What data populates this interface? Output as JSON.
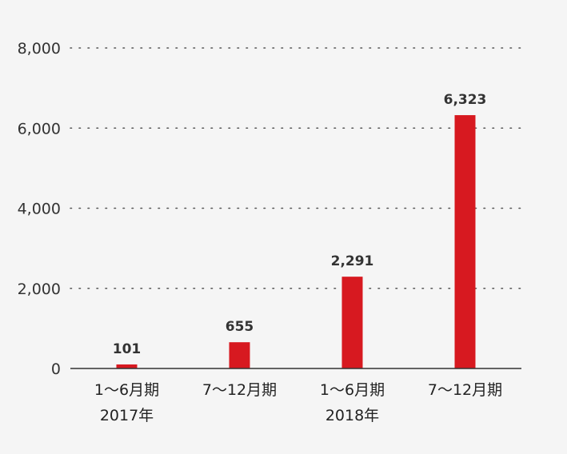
{
  "chart_data": {
    "type": "bar",
    "categories": [
      "1～6月期",
      "7～12月期",
      "1～6月期",
      "7～12月期"
    ],
    "group_labels": [
      "2017年",
      "2018年"
    ],
    "values": [
      101,
      655,
      2291,
      6323
    ],
    "value_labels": [
      "101",
      "655",
      "2,291",
      "6,323"
    ],
    "yticks": [
      0,
      2000,
      4000,
      6000,
      8000
    ],
    "ytick_labels": [
      "0",
      "2,000",
      "4,000",
      "6,000",
      "8,000"
    ],
    "ylim": [
      0,
      8000
    ],
    "grid": true,
    "bar_color": "#d71920",
    "title": "",
    "xlabel": "",
    "ylabel": ""
  }
}
